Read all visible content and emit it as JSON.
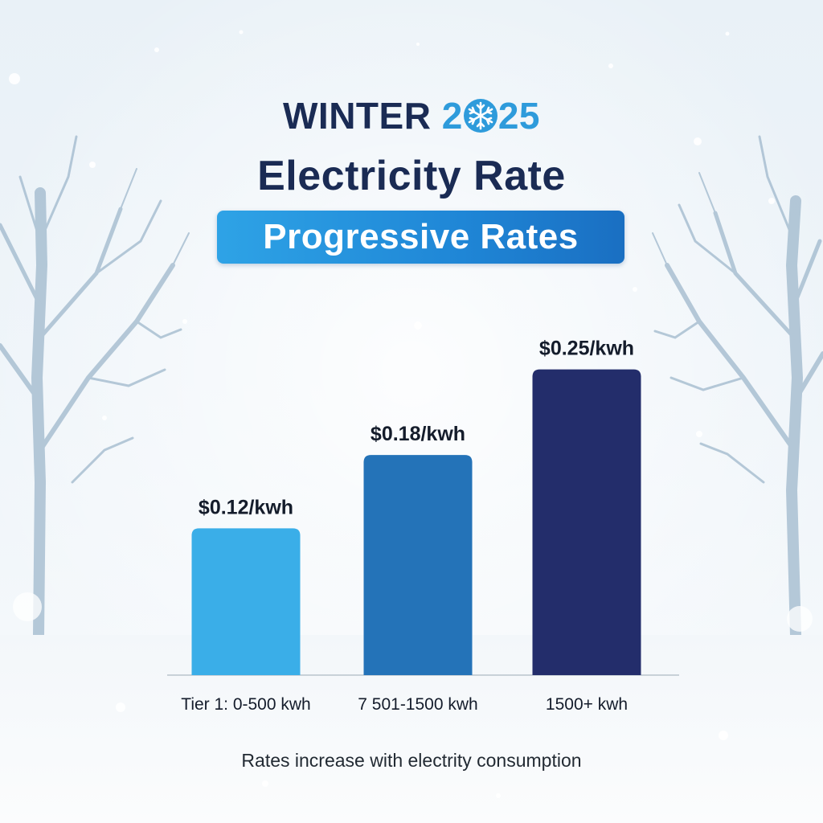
{
  "title": {
    "prefix": "WINTER ",
    "year_part1": "2",
    "year_part2": "25",
    "line2": "Electricity Rate"
  },
  "subtitle": "Progressive Rates",
  "footnote": "Rates increase with electrity consumption",
  "icons": {
    "title_icon": "snowflake-icon"
  },
  "colors": {
    "title": "#1a2b54",
    "year": "#2e9bdb",
    "bar_tier1": "#3aaee8",
    "bar_tier2": "#2473b8",
    "bar_tier3": "#232d6b"
  },
  "chart_data": {
    "type": "bar",
    "title": "WINTER 2025 Electricity Rate",
    "subtitle": "Progressive Rates",
    "categories": [
      "Tier 1: 0-500 kwh",
      "7 501-1500 kwh",
      "1500+ kwh"
    ],
    "values": [
      0.12,
      0.18,
      0.25
    ],
    "value_labels": [
      "$0.12/kwh",
      "$0.18/kwh",
      "$0.25/kwh"
    ],
    "colors": [
      "#3aaee8",
      "#2473b8",
      "#232d6b"
    ],
    "xlabel": "",
    "ylabel": "",
    "ylim": [
      0,
      0.3
    ],
    "grid": false,
    "legend": "none"
  }
}
